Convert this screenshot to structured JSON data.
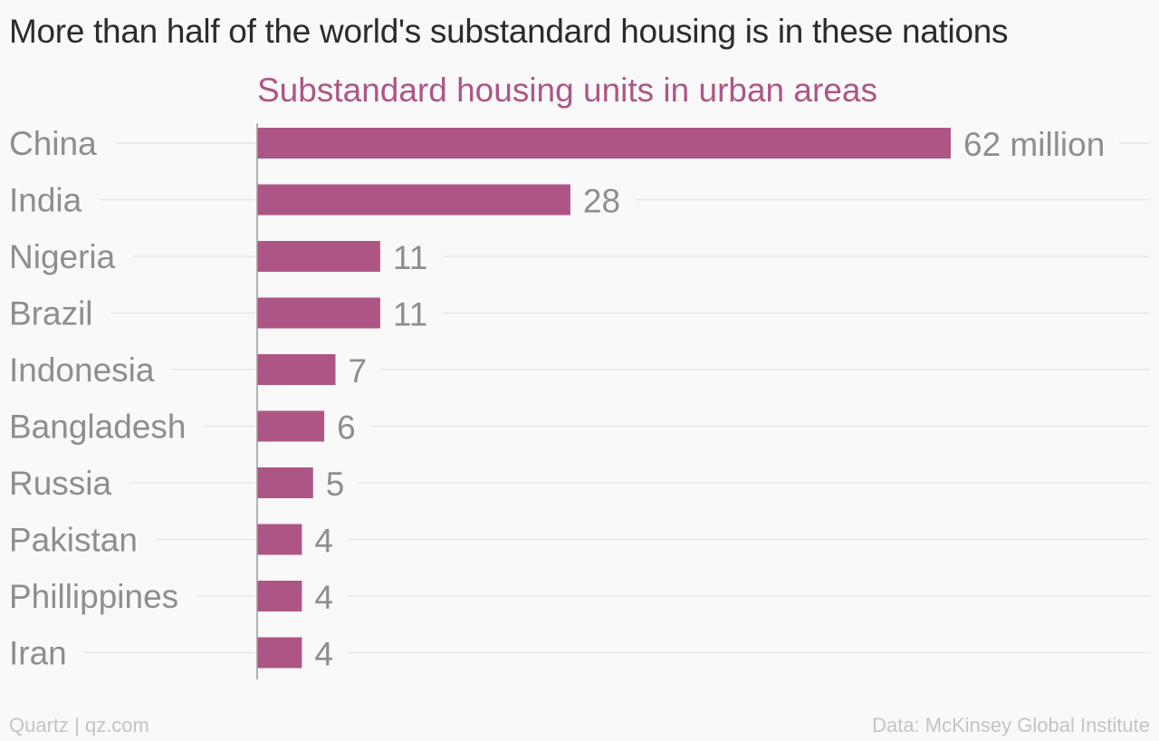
{
  "chart_data": {
    "type": "bar",
    "orientation": "horizontal",
    "title": "More than half of the world's substandard housing is in these nations",
    "subtitle": "Substandard housing units in urban areas",
    "categories": [
      "China",
      "India",
      "Nigeria",
      "Brazil",
      "Indonesia",
      "Bangladesh",
      "Russia",
      "Pakistan",
      "Phillippines",
      "Iran"
    ],
    "values": [
      62,
      28,
      11,
      11,
      7,
      6,
      5,
      4,
      4,
      4
    ],
    "value_labels": [
      "62 million",
      "28",
      "11",
      "11",
      "7",
      "6",
      "5",
      "4",
      "4",
      "4"
    ],
    "xlim": [
      0,
      62
    ],
    "grid": true,
    "bar_color": "#ad5686",
    "xlabel": "",
    "ylabel": ""
  },
  "footer": {
    "left": "Quartz | qz.com",
    "right": "Data: McKinsey Global Institute"
  },
  "colors": {
    "background": "#f9f9f9",
    "bar": "#ad5686",
    "title": "#2b2b2b",
    "subtitle": "#ad5686",
    "labels": "#8e8e8e",
    "footer": "#c4c4c4",
    "grid": "#e6e6e6"
  }
}
